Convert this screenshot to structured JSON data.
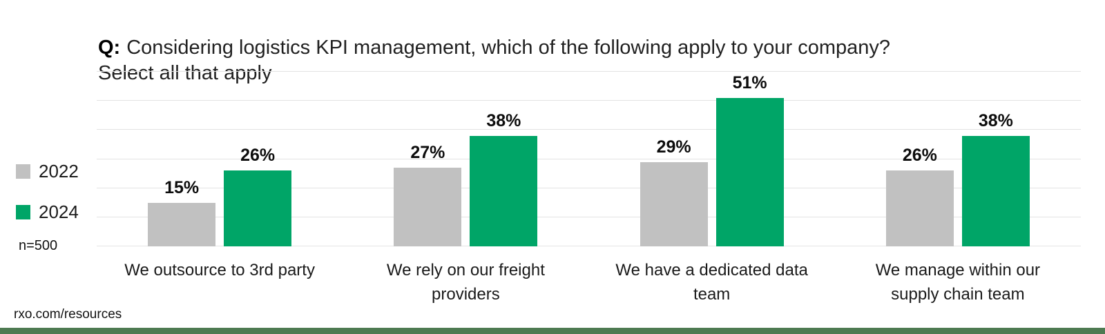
{
  "title": {
    "prefix": "Q:",
    "text": "Considering logistics KPI management, which of the following apply to your company?\nSelect all that apply"
  },
  "legend": [
    {
      "label": "2022",
      "color": "#c1c1c1"
    },
    {
      "label": "2024",
      "color": "#00a567"
    }
  ],
  "sample_size": "n=500",
  "footer": "rxo.com/resources",
  "colors": {
    "bar_2022": "#c1c1c1",
    "bar_2024": "#00a567",
    "gridline": "#e3e3e3",
    "brand_stripe": "#4e7a52",
    "background": "#ffffff",
    "text": "#1a1a1a"
  },
  "chart_data": {
    "type": "bar",
    "title": "Q: Considering logistics KPI management, which of the following apply to your company? Select all that apply",
    "categories": [
      "We outsource to 3rd party",
      "We rely on our freight\nproviders",
      "We have a dedicated data\nteam",
      "We manage within our\nsupply chain team"
    ],
    "series": [
      {
        "name": "2022",
        "color": "#c1c1c1",
        "values": [
          15,
          27,
          29,
          26
        ]
      },
      {
        "name": "2024",
        "color": "#00a567",
        "values": [
          26,
          38,
          51,
          38
        ]
      }
    ],
    "value_suffix": "%",
    "xlabel": "",
    "ylabel": "",
    "ylim": [
      0,
      60
    ],
    "grid_step": 10,
    "grid": true,
    "legend_position": "left",
    "annotation": "n=500"
  }
}
